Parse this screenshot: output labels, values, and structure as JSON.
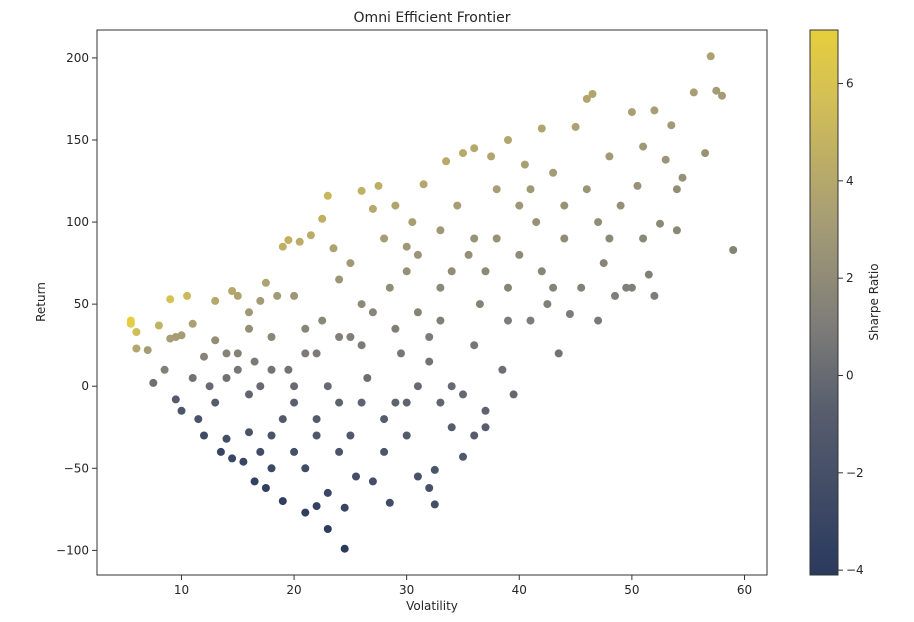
{
  "chart_data": {
    "type": "scatter",
    "title": "Omni Efficient Frontier",
    "xlabel": "Volatility",
    "ylabel": "Return",
    "xlim": [
      2.5,
      62
    ],
    "ylim": [
      -115,
      217
    ],
    "xticks": [
      10,
      20,
      30,
      40,
      50,
      60
    ],
    "yticks": [
      -100,
      -50,
      0,
      50,
      100,
      150,
      200
    ],
    "colorbar": {
      "label": "Sharpe Ratio",
      "range": [
        -4.1,
        7.1
      ],
      "ticks": [
        -4,
        -2,
        0,
        2,
        4,
        6
      ],
      "colormap": "cividis",
      "colors": [
        "#2a3a5e",
        "#575d6d",
        "#7c7b78",
        "#a69d75",
        "#d4c055",
        "#e6cf3c"
      ]
    },
    "points": [
      [
        5.5,
        40
      ],
      [
        5.5,
        38
      ],
      [
        6,
        33
      ],
      [
        6,
        23
      ],
      [
        7,
        22
      ],
      [
        8,
        37
      ],
      [
        7.5,
        2
      ],
      [
        8.5,
        10
      ],
      [
        9,
        53
      ],
      [
        9,
        29
      ],
      [
        9.5,
        30
      ],
      [
        10,
        31
      ],
      [
        10.5,
        55
      ],
      [
        10,
        -15
      ],
      [
        9.5,
        -8
      ],
      [
        11,
        5
      ],
      [
        11,
        38
      ],
      [
        11.5,
        -20
      ],
      [
        12,
        -30
      ],
      [
        12,
        18
      ],
      [
        12.5,
        0
      ],
      [
        13,
        28
      ],
      [
        13,
        52
      ],
      [
        13.5,
        -40
      ],
      [
        14,
        -32
      ],
      [
        14,
        20
      ],
      [
        14.5,
        58
      ],
      [
        14.5,
        -44
      ],
      [
        15,
        55
      ],
      [
        15,
        10
      ],
      [
        15.5,
        -46
      ],
      [
        16,
        35
      ],
      [
        16,
        -28
      ],
      [
        16.5,
        15
      ],
      [
        16.5,
        -58
      ],
      [
        17,
        52
      ],
      [
        17,
        0
      ],
      [
        17.5,
        -62
      ],
      [
        17.5,
        63
      ],
      [
        18,
        30
      ],
      [
        18,
        -50
      ],
      [
        18.5,
        55
      ],
      [
        19,
        85
      ],
      [
        19,
        -70
      ],
      [
        19.5,
        89
      ],
      [
        19.5,
        10
      ],
      [
        20,
        55
      ],
      [
        20,
        -40
      ],
      [
        20.5,
        88
      ],
      [
        21,
        20
      ],
      [
        21,
        -77
      ],
      [
        21.5,
        92
      ],
      [
        22,
        -73
      ],
      [
        22,
        -30
      ],
      [
        22.5,
        102
      ],
      [
        22.5,
        40
      ],
      [
        23,
        116
      ],
      [
        23,
        -65
      ],
      [
        23.5,
        84
      ],
      [
        23,
        -87
      ],
      [
        24,
        65
      ],
      [
        24,
        -10
      ],
      [
        24.5,
        -99
      ],
      [
        24.5,
        -74
      ],
      [
        25,
        30
      ],
      [
        25.5,
        -55
      ],
      [
        26,
        119
      ],
      [
        26,
        50
      ],
      [
        26.5,
        5
      ],
      [
        27,
        108
      ],
      [
        27,
        -58
      ],
      [
        27.5,
        122
      ],
      [
        28,
        90
      ],
      [
        28,
        -20
      ],
      [
        28.5,
        60
      ],
      [
        28.5,
        -71
      ],
      [
        29,
        110
      ],
      [
        29.5,
        20
      ],
      [
        30,
        70
      ],
      [
        30,
        -10
      ],
      [
        30.5,
        100
      ],
      [
        31,
        45
      ],
      [
        31,
        -55
      ],
      [
        31.5,
        123
      ],
      [
        32,
        -62
      ],
      [
        32,
        30
      ],
      [
        32.5,
        -51
      ],
      [
        32.5,
        -72
      ],
      [
        33,
        95
      ],
      [
        33,
        60
      ],
      [
        33.5,
        137
      ],
      [
        34,
        0
      ],
      [
        34.5,
        110
      ],
      [
        35,
        142
      ],
      [
        35,
        -43
      ],
      [
        35.5,
        80
      ],
      [
        36,
        145
      ],
      [
        36,
        25
      ],
      [
        36.5,
        50
      ],
      [
        37,
        -15
      ],
      [
        37.5,
        140
      ],
      [
        38,
        90
      ],
      [
        38.5,
        10
      ],
      [
        39,
        150
      ],
      [
        39,
        60
      ],
      [
        39.5,
        -5
      ],
      [
        40,
        110
      ],
      [
        40.5,
        135
      ],
      [
        41,
        40
      ],
      [
        41.5,
        100
      ],
      [
        42,
        157
      ],
      [
        42.5,
        50
      ],
      [
        43,
        130
      ],
      [
        43.5,
        20
      ],
      [
        44,
        90
      ],
      [
        44.5,
        44
      ],
      [
        45,
        158
      ],
      [
        45.5,
        60
      ],
      [
        46,
        175
      ],
      [
        46.5,
        178
      ],
      [
        47,
        100
      ],
      [
        47.5,
        75
      ],
      [
        48,
        140
      ],
      [
        48.5,
        55
      ],
      [
        49,
        110
      ],
      [
        49.5,
        60
      ],
      [
        50,
        167
      ],
      [
        50.5,
        122
      ],
      [
        51,
        146
      ],
      [
        51.5,
        68
      ],
      [
        52,
        168
      ],
      [
        52,
        55
      ],
      [
        52.5,
        99
      ],
      [
        53,
        138
      ],
      [
        53.5,
        159
      ],
      [
        54,
        95
      ],
      [
        54,
        120
      ],
      [
        54.5,
        127
      ],
      [
        55.5,
        179
      ],
      [
        56.5,
        142
      ],
      [
        57,
        201
      ],
      [
        57.5,
        180
      ],
      [
        58,
        177
      ],
      [
        59,
        83
      ],
      [
        15,
        20
      ],
      [
        16,
        45
      ],
      [
        18,
        10
      ],
      [
        20,
        -10
      ],
      [
        21,
        35
      ],
      [
        22,
        20
      ],
      [
        24,
        30
      ],
      [
        25,
        75
      ],
      [
        26,
        25
      ],
      [
        27,
        45
      ],
      [
        29,
        35
      ],
      [
        30,
        85
      ],
      [
        31,
        80
      ],
      [
        32,
        15
      ],
      [
        33,
        40
      ],
      [
        34,
        70
      ],
      [
        36,
        90
      ],
      [
        37,
        70
      ],
      [
        38,
        120
      ],
      [
        39,
        40
      ],
      [
        40,
        80
      ],
      [
        41,
        120
      ],
      [
        42,
        70
      ],
      [
        43,
        60
      ],
      [
        44,
        110
      ],
      [
        46,
        120
      ],
      [
        47,
        40
      ],
      [
        48,
        90
      ],
      [
        50,
        60
      ],
      [
        51,
        90
      ],
      [
        13,
        -10
      ],
      [
        14,
        5
      ],
      [
        16,
        -5
      ],
      [
        17,
        -40
      ],
      [
        18,
        -30
      ],
      [
        19,
        -20
      ],
      [
        20,
        0
      ],
      [
        21,
        -50
      ],
      [
        22,
        -20
      ],
      [
        23,
        0
      ],
      [
        24,
        -40
      ],
      [
        25,
        -30
      ],
      [
        26,
        -10
      ],
      [
        28,
        -40
      ],
      [
        29,
        -10
      ],
      [
        30,
        -30
      ],
      [
        31,
        0
      ],
      [
        33,
        -10
      ],
      [
        34,
        -25
      ],
      [
        35,
        -5
      ],
      [
        36,
        -30
      ],
      [
        37,
        -25
      ]
    ]
  }
}
